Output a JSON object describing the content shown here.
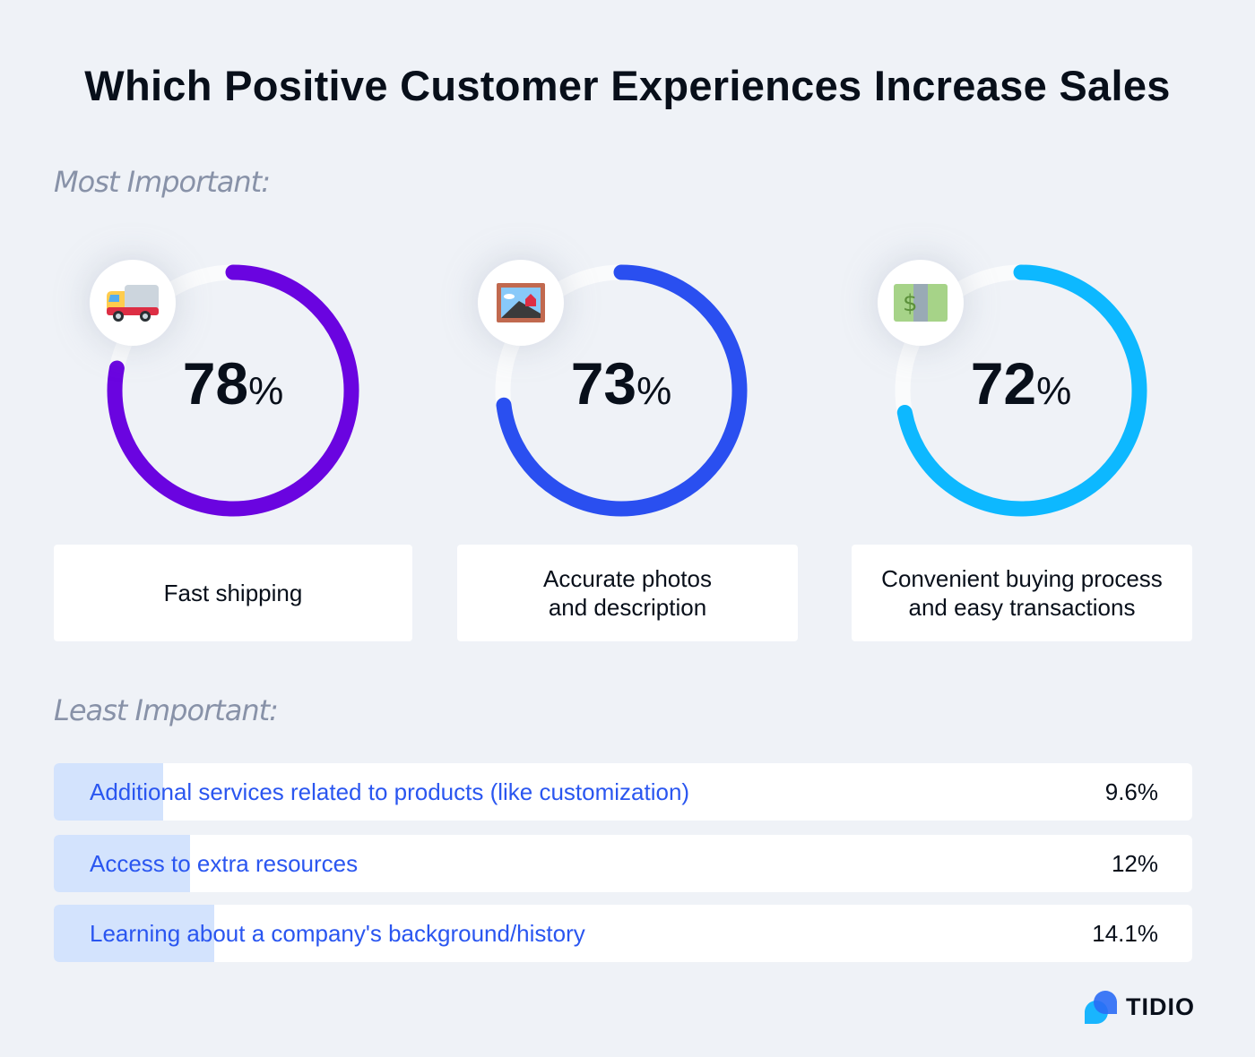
{
  "title": "Which Positive Customer Experiences Increase Sales",
  "most_label": "Most Important:",
  "least_label": "Least Important:",
  "brand": "TIDIO",
  "chart_data": [
    {
      "type": "pie",
      "subtype": "donut-progress",
      "items": [
        {
          "label": "Fast shipping",
          "value": 78,
          "display": "78",
          "icon": "delivery-truck-icon",
          "color": "#6a04e0"
        },
        {
          "label": "Accurate photos and description",
          "label_lines": [
            "Accurate photos",
            "and description"
          ],
          "value": 73,
          "display": "73",
          "icon": "framed-picture-icon",
          "color": "#2a4ff0"
        },
        {
          "label": "Convenient buying process and easy transactions",
          "label_lines": [
            "Convenient buying process",
            "and easy transactions"
          ],
          "value": 72,
          "display": "72",
          "icon": "dollar-banknote-icon",
          "color": "#0db8ff"
        }
      ],
      "unit": "%"
    },
    {
      "type": "bar",
      "orientation": "horizontal",
      "categories": [
        "Additional services related to products (like customization)",
        "Access to extra resources",
        "Learning about a company's background/history"
      ],
      "values": [
        9.6,
        12,
        14.1
      ],
      "value_labels": [
        "9.6%",
        "12%",
        "14.1%"
      ],
      "xlim": [
        0,
        100
      ],
      "color": "#d3e3fd"
    }
  ]
}
